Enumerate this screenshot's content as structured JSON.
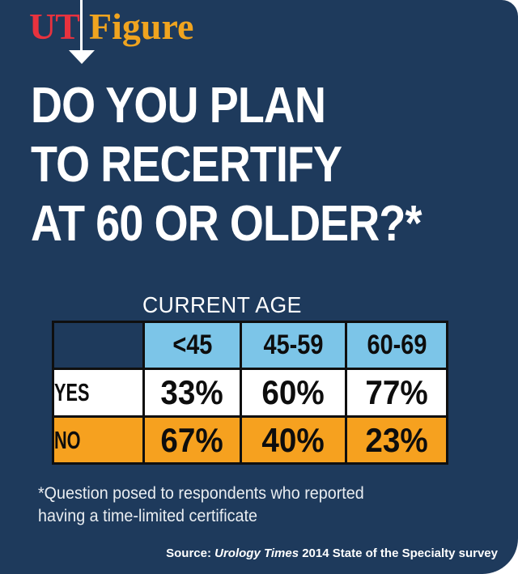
{
  "brand": {
    "ut": "UT",
    "figure": "Figure"
  },
  "title": {
    "line1": "DO YOU PLAN",
    "line2": "TO RECERTIFY",
    "line3": "AT 60 OR OLDER?*"
  },
  "table": {
    "group_header": "CURRENT AGE",
    "columns": [
      "<45",
      "45-59",
      "60-69"
    ],
    "rows": [
      {
        "label": "YES",
        "values": [
          "33%",
          "60%",
          "77%"
        ]
      },
      {
        "label": "NO",
        "values": [
          "67%",
          "40%",
          "23%"
        ]
      }
    ]
  },
  "footnote": {
    "line1": "*Question posed to respondents who reported",
    "line2": "having a time-limited certificate"
  },
  "source": {
    "prefix": "Source: ",
    "publication": "Urology Times",
    "suffix": " 2014 State of the Specialty survey"
  },
  "colors": {
    "background_navy": "#1e3a5c",
    "header_blue": "#7cc5e8",
    "row_orange": "#f6a11f",
    "row_white": "#ffffff",
    "logo_red": "#e8323e",
    "logo_gold": "#f0a41f",
    "table_border_black": "#0f0f0f",
    "text_white": "#ffffff"
  },
  "chart_data": {
    "type": "table",
    "title": "DO YOU PLAN TO RECERTIFY AT 60 OR OLDER?*",
    "column_group_label": "CURRENT AGE",
    "categories": [
      "<45",
      "45-59",
      "60-69"
    ],
    "series": [
      {
        "name": "YES",
        "values": [
          33,
          60,
          77
        ]
      },
      {
        "name": "NO",
        "values": [
          67,
          40,
          23
        ]
      }
    ],
    "units": "percent",
    "footnote": "*Question posed to respondents who reported having a time-limited certificate",
    "source": "Source: Urology Times 2014 State of the Specialty survey"
  }
}
